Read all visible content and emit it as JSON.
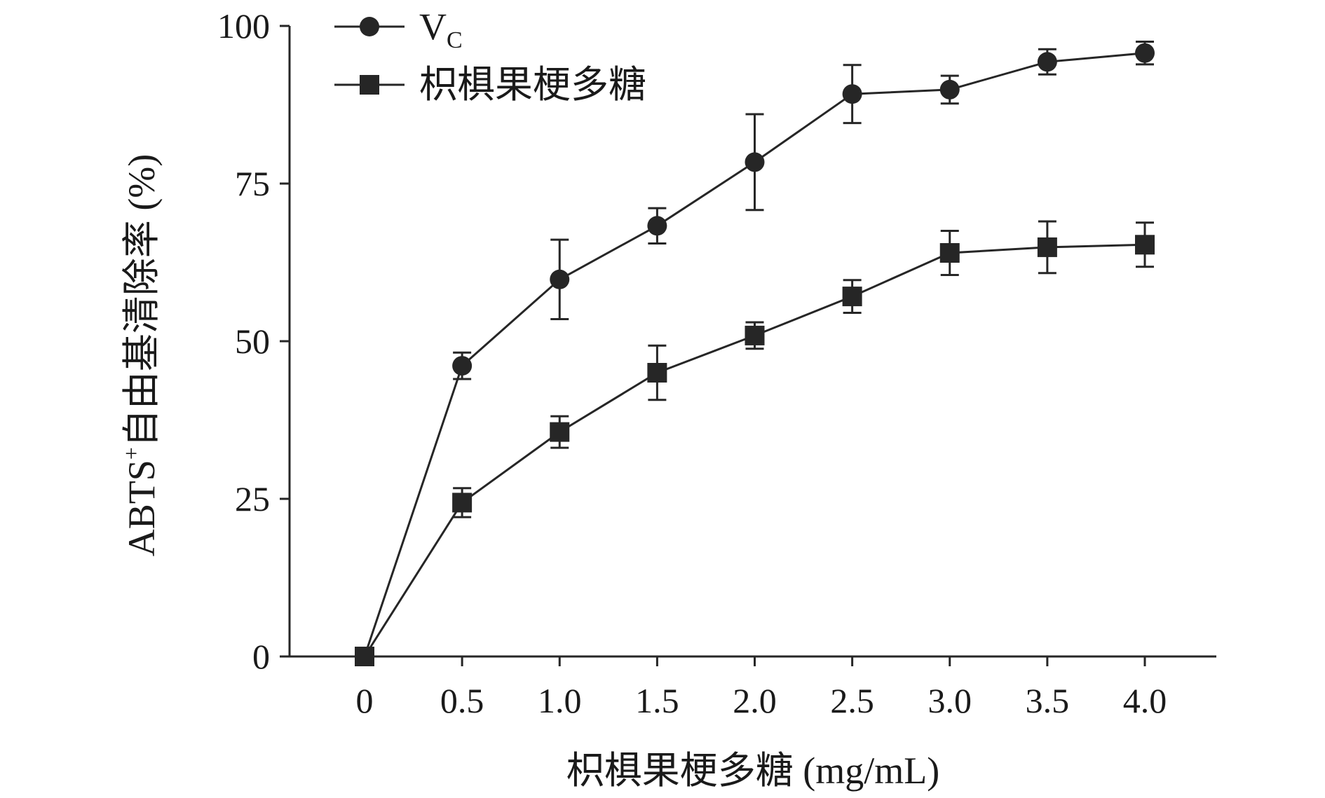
{
  "chart_data": {
    "type": "line",
    "x": [
      0,
      0.5,
      1.0,
      1.5,
      2.0,
      2.5,
      3.0,
      3.5,
      4.0
    ],
    "x_tick_labels": [
      "0",
      "0.5",
      "1.0",
      "1.5",
      "2.0",
      "2.5",
      "3.0",
      "3.5",
      "4.0"
    ],
    "y_ticks": [
      0,
      25,
      50,
      75,
      100
    ],
    "y_tick_labels": [
      "0",
      "25",
      "50",
      "75",
      "100"
    ],
    "ylim": [
      0,
      100
    ],
    "xlabel": "枳椇果梗多糖 (mg/mL)",
    "ylabel_main": "ABTS",
    "ylabel_sup": "+",
    "ylabel_rest": "自由基清除率 (%)",
    "legend_position": "top-left",
    "grid": false,
    "series": [
      {
        "name_main": "V",
        "name_sub": "C",
        "marker": "circle",
        "color": "#262626",
        "values": [
          0,
          46.1,
          59.8,
          68.3,
          78.4,
          89.2,
          89.9,
          94.3,
          95.7
        ],
        "errors": [
          0,
          2.1,
          6.3,
          2.8,
          7.6,
          4.6,
          2.2,
          2.0,
          1.8
        ]
      },
      {
        "name": "枳椇果梗多糖",
        "marker": "square",
        "color": "#262626",
        "values": [
          0,
          24.4,
          35.6,
          45.0,
          50.9,
          57.1,
          64.0,
          64.9,
          65.3
        ],
        "errors": [
          0,
          2.3,
          2.5,
          4.3,
          2.1,
          2.6,
          3.5,
          4.1,
          3.5
        ]
      }
    ]
  }
}
